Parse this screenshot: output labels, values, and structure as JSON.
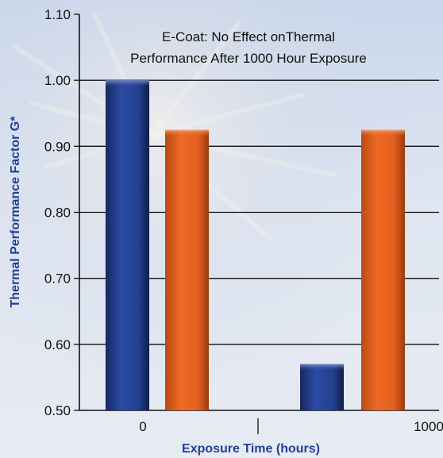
{
  "chart_data": {
    "type": "bar",
    "title_lines": [
      "E-Coat: No Effect onThermal",
      "Performance After 1000 Hour Exposure"
    ],
    "xlabel": "Exposure Time (hours)",
    "ylabel": "Thermal Performance Factor G*",
    "ylim": [
      0.5,
      1.1
    ],
    "yticks": [
      "0.50",
      "0.60",
      "0.70",
      "0.80",
      "0.90",
      "1.00",
      "1.10"
    ],
    "categories": [
      "0",
      "1000"
    ],
    "series": [
      {
        "values": [
          1.0,
          0.57
        ]
      },
      {
        "values": [
          0.925,
          0.925
        ]
      }
    ],
    "grid": true,
    "legend": "none"
  },
  "colors": {
    "series_1": "#233f94",
    "series_2": "#e35f1e",
    "axis_text": "#1f3f96",
    "grid": "#111111"
  }
}
